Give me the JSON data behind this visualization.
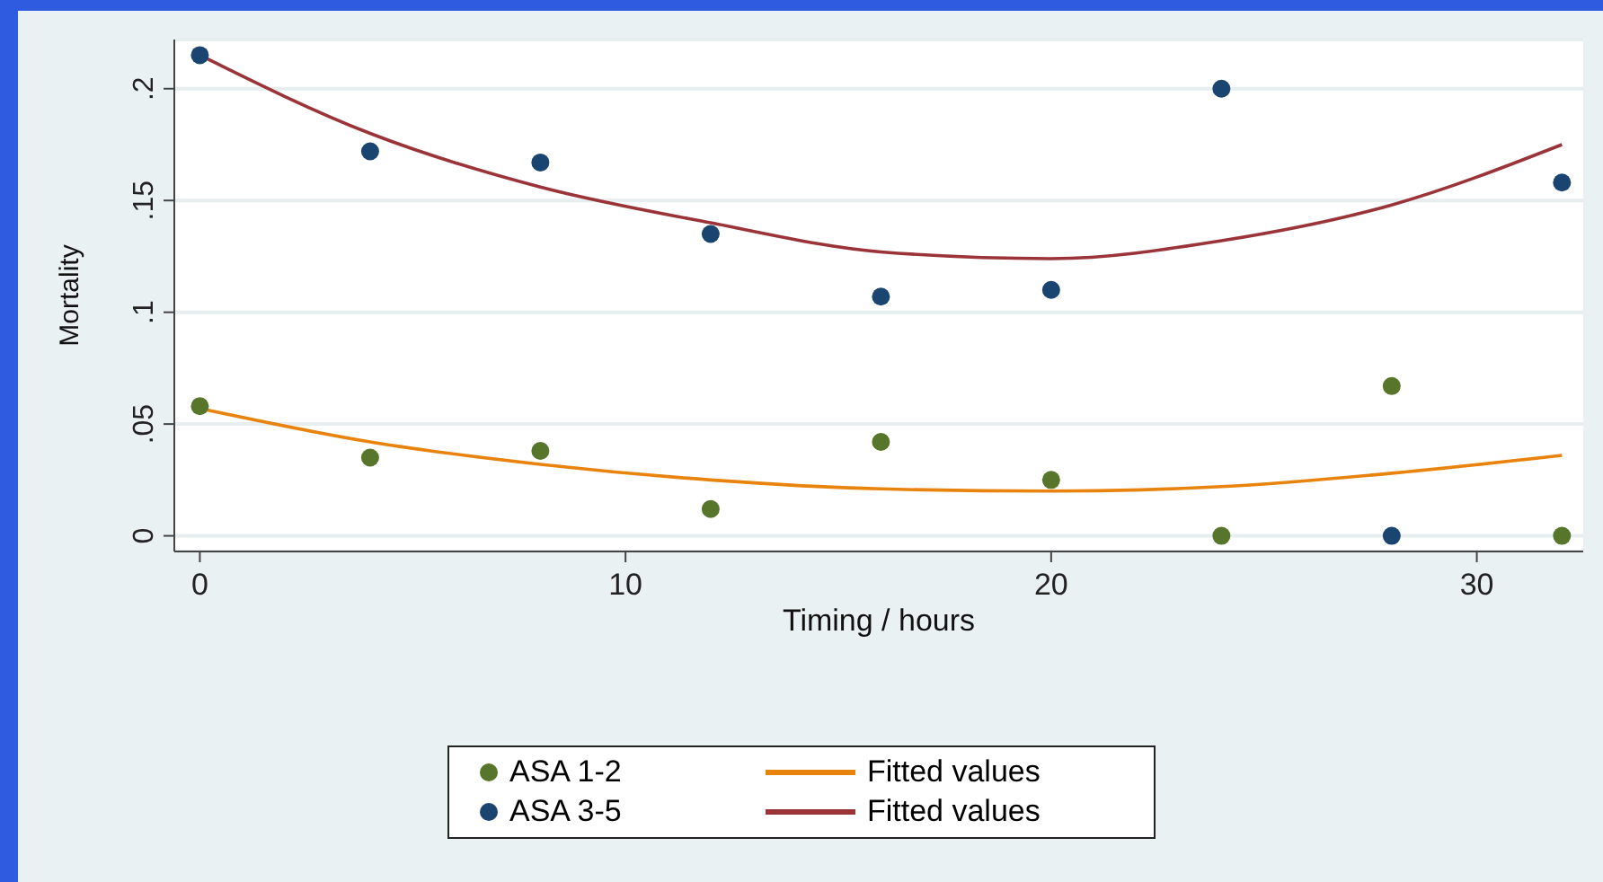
{
  "chart_data": {
    "type": "scatter",
    "xlabel": "Timing / hours",
    "ylabel": "Mortality",
    "xlim": [
      -0.6,
      32.5
    ],
    "xticks": [
      0,
      10,
      20,
      30
    ],
    "ylim": [
      -0.007,
      0.222
    ],
    "yticks": [
      {
        "value": 0,
        "label": "0"
      },
      {
        "value": 0.05,
        "label": ".05"
      },
      {
        "value": 0.1,
        "label": ".1"
      },
      {
        "value": 0.15,
        "label": ".15"
      },
      {
        "value": 0.2,
        "label": ".2"
      }
    ],
    "grid": "y",
    "legend": "bottom",
    "marker": "circle",
    "x": [
      0,
      4,
      8,
      12,
      16,
      20,
      24,
      28,
      32
    ],
    "series": [
      {
        "name": "ASA 1-2",
        "color": "#57752b",
        "values": [
          0.058,
          0.035,
          0.038,
          0.012,
          0.042,
          0.025,
          0,
          0.067,
          0
        ]
      },
      {
        "name": "Fitted values",
        "type": "line",
        "line_style": "solid",
        "marker": "none",
        "color": "#e8830e",
        "values": [
          0.057,
          0.042,
          0.032,
          0.025,
          0.021,
          0.02,
          0.022,
          0.028,
          0.036
        ]
      },
      {
        "name": "ASA 3-5",
        "color": "#1a4570",
        "values": [
          0.215,
          0.172,
          0.167,
          0.135,
          0.107,
          0.11,
          0.2,
          0,
          0.158
        ]
      },
      {
        "name": "Fitted values",
        "type": "line",
        "line_style": "solid",
        "marker": "none",
        "color": "#9b3438",
        "values": [
          0.215,
          0.18,
          0.156,
          0.14,
          0.127,
          0.124,
          0.132,
          0.148,
          0.175
        ]
      }
    ]
  }
}
